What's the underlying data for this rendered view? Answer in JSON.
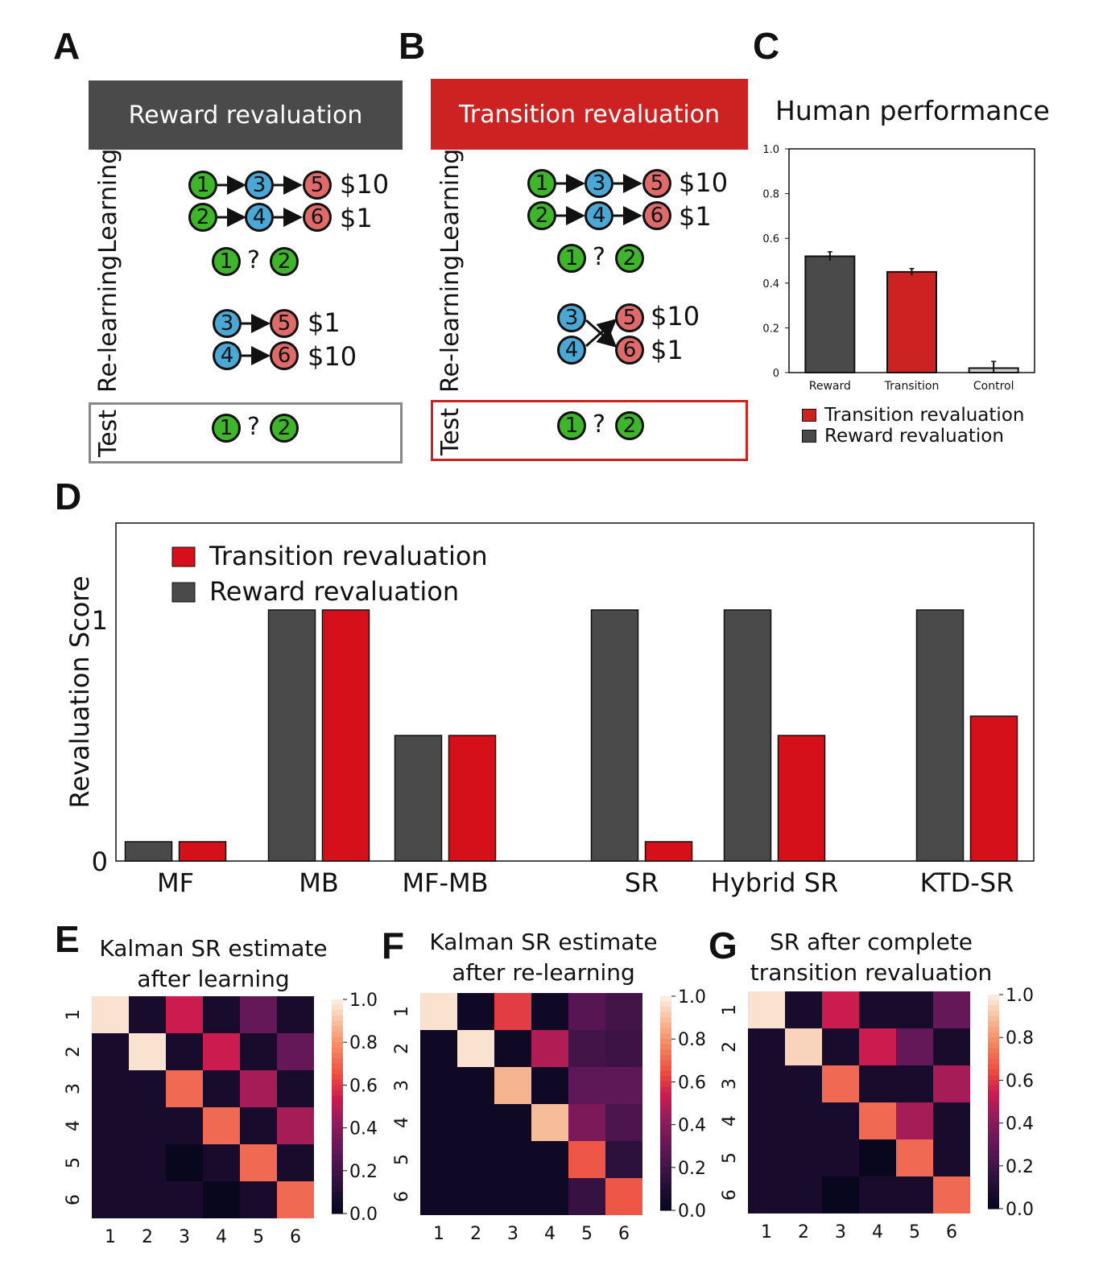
{
  "panels": {
    "A": "A",
    "B": "B",
    "C": "C",
    "D": "D",
    "E": "E",
    "F": "F",
    "G": "G"
  },
  "panel_a": {
    "header": "Reward revaluation",
    "header_color": "#4a4a4a",
    "learning_label": "Learning",
    "relearning_label": "Re-learning",
    "test_label": "Test",
    "learning_rows": [
      {
        "nodes": [
          "1",
          "3",
          "5"
        ],
        "reward": "$10"
      },
      {
        "nodes": [
          "2",
          "4",
          "6"
        ],
        "reward": "$1"
      }
    ],
    "choice": {
      "left": "1",
      "q": "?",
      "right": "2"
    },
    "relearning_rows": [
      {
        "nodes": [
          "3",
          "5"
        ],
        "reward": "$1"
      },
      {
        "nodes": [
          "4",
          "6"
        ],
        "reward": "$10"
      }
    ],
    "test_choice": {
      "left": "1",
      "q": "?",
      "right": "2"
    },
    "test_border_color": "#888888"
  },
  "panel_b": {
    "header": "Transition revaluation",
    "header_color": "#cc2222",
    "learning_label": "Learning",
    "relearning_label": "Re-learning",
    "test_label": "Test",
    "learning_rows": [
      {
        "nodes": [
          "1",
          "3",
          "5"
        ],
        "reward": "$10"
      },
      {
        "nodes": [
          "2",
          "4",
          "6"
        ],
        "reward": "$1"
      }
    ],
    "choice": {
      "left": "1",
      "q": "?",
      "right": "2"
    },
    "relearning_nodes": {
      "left": [
        "3",
        "4"
      ],
      "right": [
        "5",
        "6"
      ],
      "rewards": [
        "$10",
        "$1"
      ]
    },
    "test_choice": {
      "left": "1",
      "q": "?",
      "right": "2"
    },
    "test_border_color": "#cc2222"
  },
  "panel_c": {
    "title": "Human performance",
    "chart_data": {
      "type": "bar",
      "categories": [
        "Reward",
        "Transition",
        "Control"
      ],
      "values": [
        0.52,
        0.45,
        0.02
      ],
      "errors": [
        0.02,
        0.015,
        0.03
      ],
      "colors": [
        "#4a4a4a",
        "#cc2222",
        "#cccccc"
      ],
      "ylim": [
        0,
        1.0
      ],
      "yticks": [
        "0",
        "0.2",
        "0.4",
        "0.6",
        "0.8",
        "1.0"
      ],
      "ytick_values": [
        0,
        0.2,
        0.4,
        0.6,
        0.8,
        1.0
      ],
      "legend": [
        {
          "label": "Transition revaluation",
          "color": "#cc2222"
        },
        {
          "label": "Reward revaluation",
          "color": "#4a4a4a"
        }
      ]
    }
  },
  "panel_d": {
    "chart_data": {
      "type": "bar",
      "categories": [
        "MF",
        "MB",
        "MF-MB",
        "SR",
        "Hybrid SR",
        "KTD-SR"
      ],
      "ylabel": "Revaluation Score",
      "ylim": [
        0,
        1.4
      ],
      "yticks": [
        "0",
        "1"
      ],
      "ytick_values": [
        0,
        1
      ],
      "series": [
        {
          "name": "Reward revaluation",
          "color": "#4a4a4a",
          "values": [
            0.08,
            1.04,
            0.52,
            1.04,
            1.04,
            1.04
          ]
        },
        {
          "name": "Transition revaluation",
          "color": "#d5101a",
          "values": [
            0.08,
            1.04,
            0.52,
            0.08,
            0.52,
            0.6
          ]
        }
      ],
      "legend": [
        {
          "label": "Transition revaluation",
          "color": "#d5101a"
        },
        {
          "label": "Reward revaluation",
          "color": "#4a4a4a"
        }
      ]
    }
  },
  "heatmaps": [
    {
      "title_lines": [
        "Kalman SR estimate",
        "after learning"
      ],
      "chart_data": {
        "type": "heatmap",
        "labels": [
          "1",
          "2",
          "3",
          "4",
          "5",
          "6"
        ],
        "colorbar_ticks": [
          "1.0",
          "0.8",
          "0.6",
          "0.4",
          "0.2",
          "0.0"
        ],
        "matrix": [
          [
            0.98,
            0.08,
            0.55,
            0.08,
            0.32,
            0.08
          ],
          [
            0.08,
            0.98,
            0.08,
            0.55,
            0.08,
            0.32
          ],
          [
            0.08,
            0.08,
            0.72,
            0.08,
            0.48,
            0.08
          ],
          [
            0.08,
            0.08,
            0.08,
            0.72,
            0.08,
            0.48
          ],
          [
            0.08,
            0.08,
            0.02,
            0.08,
            0.72,
            0.08
          ],
          [
            0.08,
            0.08,
            0.08,
            0.02,
            0.08,
            0.72
          ]
        ]
      }
    },
    {
      "title_lines": [
        "Kalman SR estimate",
        "after re-learning"
      ],
      "chart_data": {
        "type": "heatmap",
        "labels": [
          "1",
          "2",
          "3",
          "4",
          "5",
          "6"
        ],
        "colorbar_ticks": [
          "1.0",
          "0.8",
          "0.6",
          "0.4",
          "0.2",
          "0.0"
        ],
        "matrix": [
          [
            0.98,
            0.05,
            0.62,
            0.05,
            0.28,
            0.22
          ],
          [
            0.05,
            0.98,
            0.05,
            0.5,
            0.22,
            0.2
          ],
          [
            0.05,
            0.05,
            0.88,
            0.05,
            0.3,
            0.3
          ],
          [
            0.05,
            0.05,
            0.05,
            0.9,
            0.38,
            0.25
          ],
          [
            0.05,
            0.05,
            0.05,
            0.05,
            0.68,
            0.15
          ],
          [
            0.05,
            0.05,
            0.05,
            0.05,
            0.18,
            0.68
          ]
        ]
      }
    },
    {
      "title_lines": [
        "SR after complete",
        "transition revaluation"
      ],
      "chart_data": {
        "type": "heatmap",
        "labels": [
          "1",
          "2",
          "3",
          "4",
          "5",
          "6"
        ],
        "colorbar_ticks": [
          "1.0",
          "0.8",
          "0.6",
          "0.4",
          "0.2",
          "0.0"
        ],
        "matrix": [
          [
            0.98,
            0.08,
            0.55,
            0.08,
            0.08,
            0.32
          ],
          [
            0.08,
            0.95,
            0.08,
            0.55,
            0.32,
            0.08
          ],
          [
            0.08,
            0.08,
            0.72,
            0.08,
            0.08,
            0.48
          ],
          [
            0.08,
            0.08,
            0.08,
            0.72,
            0.48,
            0.08
          ],
          [
            0.08,
            0.08,
            0.08,
            0.02,
            0.72,
            0.08
          ],
          [
            0.08,
            0.08,
            0.02,
            0.08,
            0.08,
            0.72
          ]
        ]
      }
    }
  ]
}
